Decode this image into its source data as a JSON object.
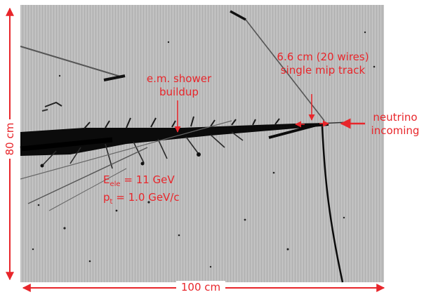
{
  "colors": {
    "annotation": "#e8262b",
    "background": "#ffffff",
    "image_mid": "#b9b9b9"
  },
  "dimensions": {
    "height_label": "80 cm",
    "width_label": "100 cm"
  },
  "annotations": {
    "shower": [
      "e.m. shower",
      "buildup"
    ],
    "mip": [
      "6.6 cm (20 wires)",
      "single mip track"
    ],
    "neutrino": [
      "neutrino",
      "incoming"
    ],
    "energy": {
      "symbol": "E",
      "subscript": "ele",
      "value": "= 11  GeV"
    },
    "pt": {
      "symbol": "p",
      "subscript": "t",
      "value": "= 1.0 GeV/c"
    }
  }
}
